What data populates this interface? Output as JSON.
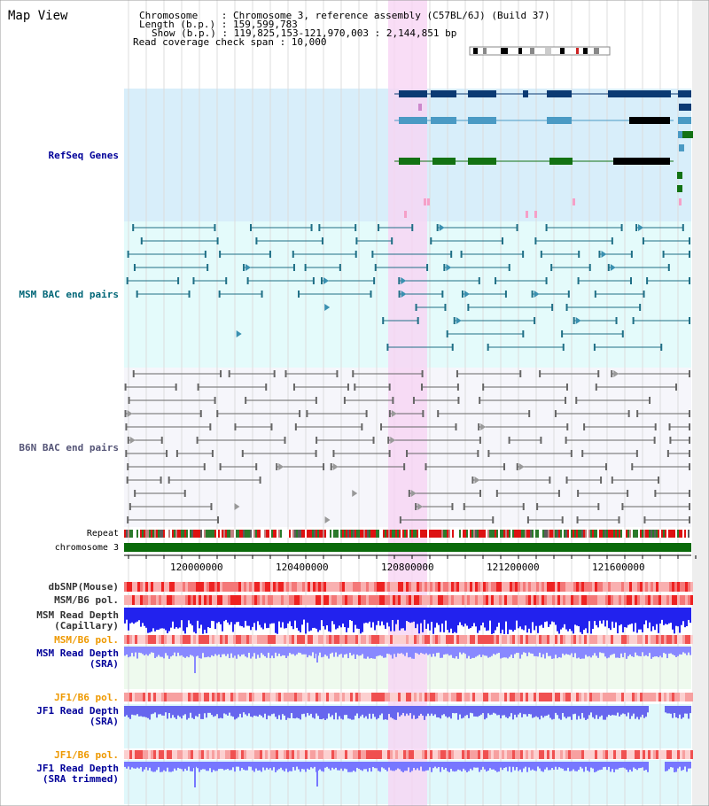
{
  "title": "Map View",
  "header": {
    "line1": "Chromosome    : Chromosome 3, reference assembly (C57BL/6J) (Build 37)",
    "line2": "Length (b.p.) : 159,599,783",
    "line3": "Show (b.p.) : 119,825,153-121,970,003 : 2,144,851 bp",
    "line4": "Read coverage check span : 10,000"
  },
  "tracks": {
    "refseq": "RefSeq Genes",
    "msm_bac": "MSM BAC end pairs",
    "b6n_bac": "B6N BAC end pairs",
    "repeat": "Repeat",
    "chromosome": "chromosome 3",
    "dbsnp": "dbSNP(Mouse)",
    "msm_pol": "MSM/B6 pol.",
    "msm_depth_cap_1": "MSM Read Depth",
    "msm_depth_cap_2": "(Capillary)",
    "msm_pol2": "MSM/B6 pol.",
    "msm_depth_sra_1": "MSM Read Depth",
    "msm_depth_sra_2": "(SRA)",
    "jf1_pol": "JF1/B6 pol.",
    "jf1_depth_1": "JF1 Read Depth",
    "jf1_depth_2": "(SRA)",
    "jf1_pol2": "JF1/B6 pol.",
    "jf1_trim_1": "JF1 Read Depth",
    "jf1_trim_2": "(SRA trimmed)"
  },
  "axis_ticks": [
    "120000000",
    "120400000",
    "120800000",
    "121200000",
    "121600000"
  ],
  "colors": {
    "refseq_bg": "#d8eefa",
    "msm_bg": "#e4fbfb",
    "b6n_bg": "#f6f6fb",
    "highlight": "#f8d4f4",
    "refseq_dark": "#0b3a73",
    "refseq_mid": "#4a9ac4",
    "refseq_green": "#137213",
    "msm_line": "#1f6f86",
    "b6n_line": "#666666",
    "chromosome_bar": "#0a6a0a",
    "label_navy": "#000099",
    "label_teal": "#006677",
    "label_orange": "#ee9900",
    "depth_blue": "#2222ee",
    "depth_light": "#8888ff"
  }
}
